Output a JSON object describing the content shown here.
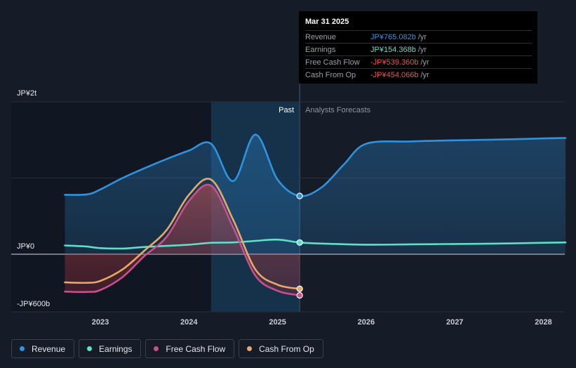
{
  "chart_data": {
    "type": "line",
    "y_unit_labels": {
      "top": "JP¥2t",
      "zero": "JP¥0",
      "bottom": "-JP¥600b"
    },
    "ylim": [
      -750,
      2000
    ],
    "xlim": [
      2022.55,
      2028.25
    ],
    "x_ticks": [
      "2023",
      "2024",
      "2025",
      "2026",
      "2027",
      "2028"
    ],
    "x_tick_values": [
      2023,
      2024,
      2025,
      2026,
      2027,
      2028
    ],
    "past_label": "Past",
    "forecast_label": "Analysts Forecasts",
    "past_end": 2025.25,
    "highlight_start": 2024.25,
    "series": [
      {
        "name": "Revenue",
        "color": "#2f93e0",
        "fill": true,
        "x": [
          2022.6,
          2022.85,
          2023.0,
          2023.25,
          2023.5,
          2023.75,
          2024.0,
          2024.25,
          2024.5,
          2024.75,
          2025.0,
          2025.25,
          2025.5,
          2025.75,
          2026.0,
          2026.5,
          2027.0,
          2027.5,
          2028.0,
          2028.25
        ],
        "y": [
          780,
          785,
          850,
          1000,
          1130,
          1250,
          1360,
          1450,
          960,
          1570,
          980,
          765,
          880,
          1180,
          1450,
          1480,
          1495,
          1505,
          1520,
          1525
        ]
      },
      {
        "name": "Earnings",
        "color": "#5ee0c8",
        "fill": false,
        "x": [
          2022.6,
          2022.85,
          2023.0,
          2023.25,
          2023.5,
          2023.75,
          2024.0,
          2024.25,
          2024.5,
          2024.75,
          2025.0,
          2025.25,
          2025.5,
          2026.0,
          2026.5,
          2027.0,
          2027.5,
          2028.0,
          2028.25
        ],
        "y": [
          115,
          100,
          80,
          75,
          95,
          110,
          125,
          150,
          155,
          175,
          192,
          154,
          140,
          125,
          130,
          135,
          140,
          150,
          155
        ]
      },
      {
        "name": "Free Cash Flow",
        "color": "#c94f8f",
        "fill": true,
        "x": [
          2022.6,
          2022.85,
          2023.0,
          2023.25,
          2023.5,
          2023.75,
          2024.0,
          2024.25,
          2024.5,
          2024.75,
          2025.0,
          2025.25
        ],
        "y": [
          -490,
          -495,
          -470,
          -300,
          -20,
          230,
          700,
          900,
          350,
          -280,
          -480,
          -539
        ]
      },
      {
        "name": "Cash From Op",
        "color": "#e7a965",
        "fill": false,
        "x": [
          2022.6,
          2022.85,
          2023.0,
          2023.25,
          2023.5,
          2023.75,
          2024.0,
          2024.25,
          2024.5,
          2024.75,
          2025.0,
          2025.25
        ],
        "y": [
          -370,
          -375,
          -350,
          -200,
          50,
          320,
          780,
          980,
          450,
          -200,
          -400,
          -454
        ]
      }
    ],
    "tooltip": {
      "date": "Mar 31 2025",
      "rows": [
        {
          "label": "Revenue",
          "value": "JP¥765.082b",
          "unit": "/yr",
          "color": "#2f93e0"
        },
        {
          "label": "Earnings",
          "value": "JP¥154.368b",
          "unit": "/yr",
          "color": "#5ee0c8"
        },
        {
          "label": "Free Cash Flow",
          "value": "-JP¥539.360b",
          "unit": "/yr",
          "color": "#ff4d4d"
        },
        {
          "label": "Cash From Op",
          "value": "-JP¥454.066b",
          "unit": "/yr",
          "color": "#ff4d4d"
        }
      ]
    },
    "legend": [
      {
        "name": "Revenue",
        "color": "#2f93e0"
      },
      {
        "name": "Earnings",
        "color": "#5ee0c8"
      },
      {
        "name": "Free Cash Flow",
        "color": "#c94f8f"
      },
      {
        "name": "Cash From Op",
        "color": "#e7a965"
      }
    ],
    "grid": true
  }
}
